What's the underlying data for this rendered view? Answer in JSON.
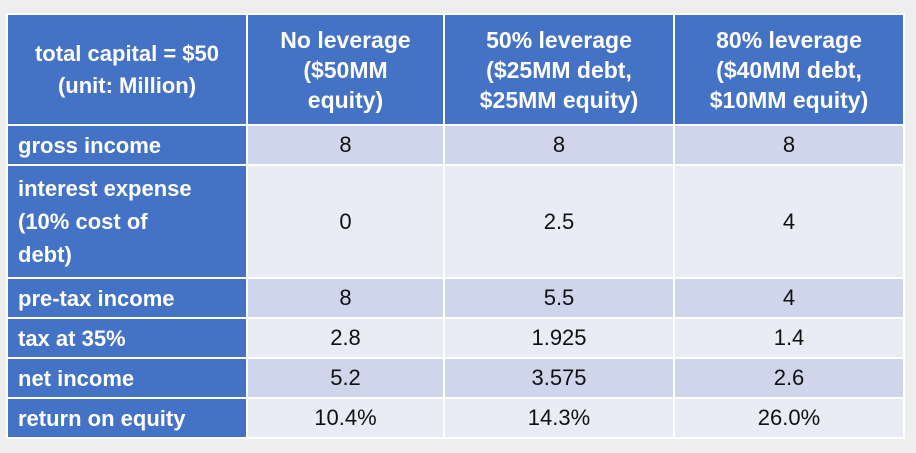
{
  "table": {
    "corner": [
      "total capital = $50",
      "(unit: Million)"
    ],
    "columns": [
      [
        "No leverage",
        "($50MM",
        "equity)"
      ],
      [
        "50% leverage",
        "($25MM debt,",
        "$25MM equity)"
      ],
      [
        "80% leverage",
        "($40MM debt,",
        "$10MM equity)"
      ]
    ],
    "rows": [
      {
        "label": [
          "gross income"
        ],
        "values": [
          "8",
          "8",
          "8"
        ]
      },
      {
        "label": [
          "interest expense",
          "(10% cost of",
          "debt)"
        ],
        "values": [
          "0",
          "2.5",
          "4"
        ]
      },
      {
        "label": [
          "pre-tax income"
        ],
        "values": [
          "8",
          "5.5",
          "4"
        ]
      },
      {
        "label": [
          "tax at 35%"
        ],
        "values": [
          "2.8",
          "1.925",
          "1.4"
        ]
      },
      {
        "label": [
          "net income"
        ],
        "values": [
          "5.2",
          "3.575",
          "2.6"
        ]
      },
      {
        "label": [
          "return on equity"
        ],
        "values": [
          "10.4%",
          "14.3%",
          "26.0%"
        ]
      }
    ]
  },
  "colors": {
    "header_blue": "#4472c4",
    "row_band_dark": "#cfd5ea",
    "row_band_light": "#e9ebf5"
  }
}
